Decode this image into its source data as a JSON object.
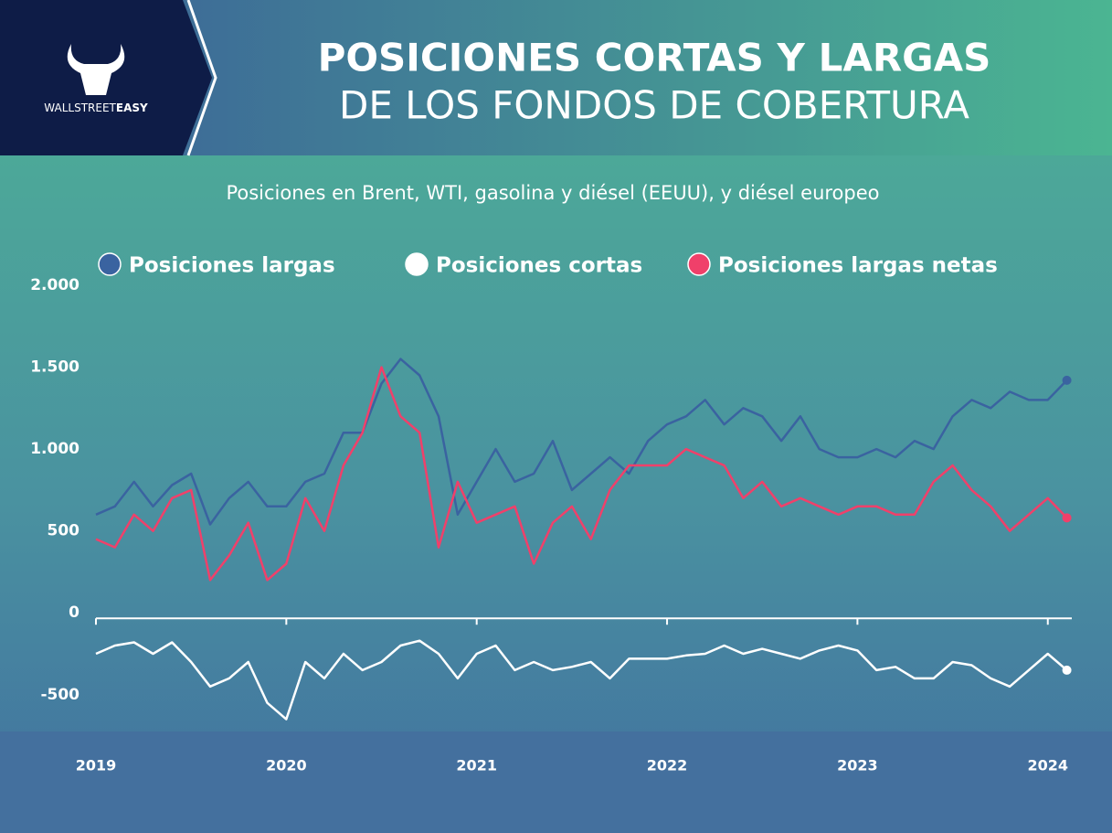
{
  "logo": [
    "WALLSTREET",
    "EASY"
  ],
  "chart_data": {
    "type": "line",
    "title": [
      "POSICIONES CORTAS Y LARGAS",
      "DE LOS FONDOS DE COBERTURA"
    ],
    "subtitle": "Posiciones en Brent, WTI, gasolina y diésel (EEUU), y diésel europeo",
    "x": [
      2019.0,
      2019.1,
      2019.2,
      2019.3,
      2019.4,
      2019.5,
      2019.6,
      2019.7,
      2019.8,
      2019.9,
      2020.0,
      2020.1,
      2020.2,
      2020.3,
      2020.4,
      2020.5,
      2020.6,
      2020.7,
      2020.8,
      2020.9,
      2021.0,
      2021.1,
      2021.2,
      2021.3,
      2021.4,
      2021.5,
      2021.6,
      2021.7,
      2021.8,
      2021.9,
      2022.0,
      2022.1,
      2022.2,
      2022.3,
      2022.4,
      2022.5,
      2022.6,
      2022.7,
      2022.8,
      2022.9,
      2023.0,
      2023.1,
      2023.2,
      2023.3,
      2023.4,
      2023.5,
      2023.6,
      2023.7,
      2023.8,
      2023.9,
      2024.0,
      2024.1
    ],
    "series": [
      {
        "name": "Posiciones largas",
        "color": "#3a63a0",
        "values": [
          600,
          650,
          800,
          650,
          780,
          850,
          540,
          700,
          800,
          650,
          650,
          800,
          850,
          1100,
          1100,
          1400,
          1550,
          1450,
          1200,
          600,
          800,
          1000,
          800,
          850,
          1050,
          750,
          850,
          950,
          850,
          1050,
          1150,
          1200,
          1300,
          1150,
          1250,
          1200,
          1050,
          1200,
          1000,
          950,
          950,
          1000,
          950,
          1050,
          1000,
          1200,
          1300,
          1250,
          1350,
          1300,
          1300,
          1420
        ]
      },
      {
        "name": "Posiciones cortas",
        "color": "#ffffff",
        "values": [
          -250,
          -200,
          -180,
          -250,
          -180,
          -300,
          -450,
          -400,
          -300,
          -550,
          -650,
          -300,
          -400,
          -250,
          -350,
          -300,
          -200,
          -170,
          -250,
          -400,
          -250,
          -200,
          -350,
          -300,
          -350,
          -330,
          -300,
          -400,
          -280,
          -280,
          -280,
          -260,
          -250,
          -200,
          -250,
          -220,
          -250,
          -280,
          -230,
          -200,
          -230,
          -350,
          -330,
          -400,
          -400,
          -300,
          -320,
          -400,
          -450,
          -350,
          -250,
          -350
        ]
      },
      {
        "name": "Posiciones largas netas",
        "color": "#f0406a",
        "values": [
          450,
          400,
          600,
          500,
          700,
          750,
          200,
          350,
          550,
          200,
          300,
          700,
          500,
          900,
          1100,
          1500,
          1200,
          1100,
          400,
          800,
          550,
          600,
          650,
          300,
          550,
          650,
          450,
          750,
          900,
          900,
          900,
          1000,
          950,
          900,
          700,
          800,
          650,
          700,
          650,
          600,
          650,
          650,
          600,
          600,
          800,
          900,
          750,
          650,
          500,
          600,
          700,
          580
        ]
      }
    ],
    "xlim": [
      2019,
      2024.15
    ],
    "xticks": [
      2019,
      2020,
      2021,
      2022,
      2023,
      2024
    ],
    "ylim": [
      -700,
      2000
    ],
    "yticks": [
      {
        "value": 2000,
        "label": "2.000"
      },
      {
        "value": 1500,
        "label": "1.500"
      },
      {
        "value": 1000,
        "label": "1.000"
      },
      500,
      0,
      -500
    ]
  }
}
